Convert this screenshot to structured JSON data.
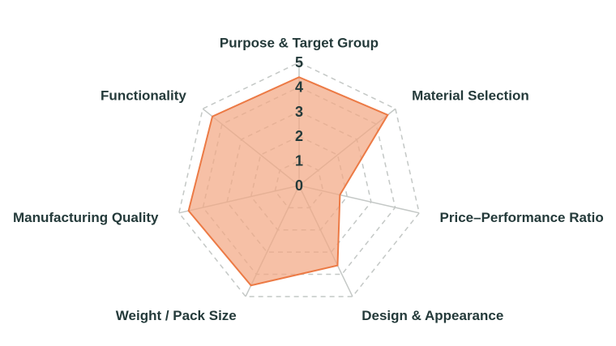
{
  "chart_data": {
    "type": "radar",
    "axes": [
      "Purpose & Target Group",
      "Material Selection",
      "Price–Performance Ratio",
      "Design & Appearance",
      "Weight / Pack Size",
      "Manufacturing Quality",
      "Functionality"
    ],
    "series": [
      {
        "values": [
          4.4,
          4.6,
          1.7,
          3.6,
          4.5,
          4.6,
          4.5
        ]
      }
    ],
    "rlim": [
      0,
      5
    ],
    "ticks": [
      "0",
      "1",
      "2",
      "3",
      "4",
      "5"
    ],
    "grid": true,
    "colors": {
      "line": "#ec7a45",
      "fill": "#f2a784",
      "grid": "#c4c8c6",
      "text": "#243a3a"
    }
  }
}
